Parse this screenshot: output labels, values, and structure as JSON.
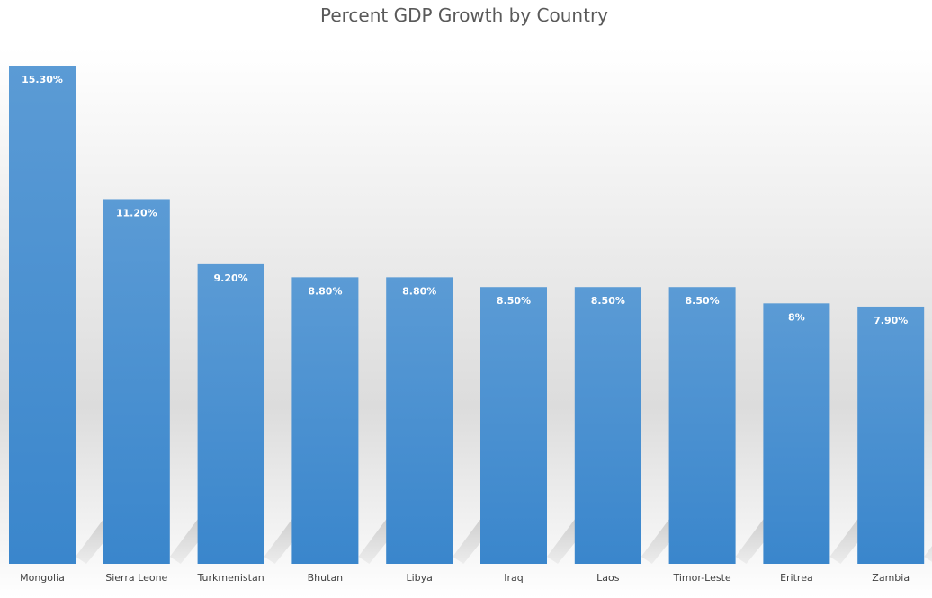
{
  "chart_data": {
    "type": "bar",
    "title": "Percent GDP Growth by Country",
    "categories": [
      "Mongolia",
      "Sierra Leone",
      "Turkmenistan",
      "Bhutan",
      "Libya",
      "Iraq",
      "Laos",
      "Timor-Leste",
      "Eritrea",
      "Zambia"
    ],
    "values": [
      15.3,
      11.2,
      9.2,
      8.8,
      8.8,
      8.5,
      8.5,
      8.5,
      8,
      7.9
    ],
    "data_labels": [
      "15.30%",
      "11.20%",
      "9.20%",
      "8.80%",
      "8.80%",
      "8.50%",
      "8.50%",
      "8.50%",
      "8%",
      "7.90%"
    ],
    "xlabel": "",
    "ylabel": "",
    "ylim": [
      0,
      15.3
    ],
    "grid": false,
    "legend": "none",
    "bar_color_top": "#5b9bd5",
    "bar_color_bottom": "#3a86cc"
  }
}
